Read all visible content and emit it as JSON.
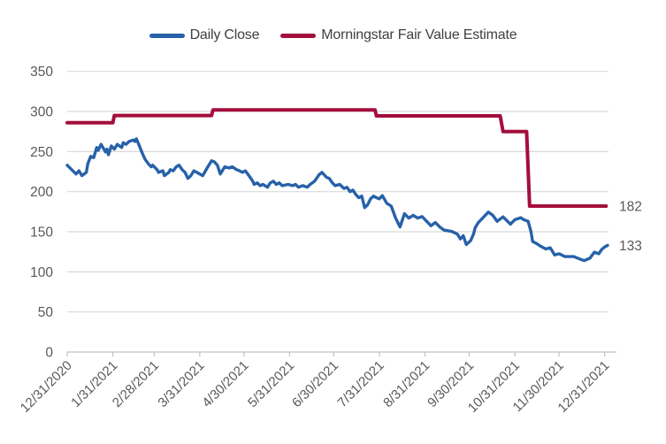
{
  "chart_data": {
    "type": "line",
    "title": "",
    "legend_position": "top-center",
    "grid": "horizontal",
    "x_axis": {
      "tick_labels": [
        "12/31/2020",
        "1/31/2021",
        "2/28/2021",
        "3/31/2021",
        "4/30/2021",
        "5/31/2021",
        "6/30/2021",
        "7/31/2021",
        "8/31/2021",
        "9/30/2021",
        "10/31/2021",
        "11/30/2021",
        "12/31/2021"
      ],
      "tick_days": [
        0,
        31,
        59,
        90,
        120,
        151,
        181,
        212,
        243,
        273,
        304,
        334,
        365
      ],
      "domain_days": [
        0,
        367
      ]
    },
    "y_axis": {
      "tick_values": [
        0,
        50,
        100,
        150,
        200,
        250,
        300,
        350
      ],
      "min": 0,
      "max": 350
    },
    "series": [
      {
        "name": "Daily Close",
        "type": "line",
        "color": "#2761A9",
        "end_label": "133",
        "points": [
          [
            0,
            233
          ],
          [
            3,
            227.5
          ],
          [
            6,
            222
          ],
          [
            8,
            226
          ],
          [
            10,
            220
          ],
          [
            13,
            224
          ],
          [
            14,
            235
          ],
          [
            16,
            244
          ],
          [
            18,
            242.5
          ],
          [
            20,
            255
          ],
          [
            21,
            251.5
          ],
          [
            23,
            259
          ],
          [
            26,
            249.5
          ],
          [
            27,
            253
          ],
          [
            28,
            246
          ],
          [
            30,
            257
          ],
          [
            32,
            253
          ],
          [
            34,
            259
          ],
          [
            37,
            255
          ],
          [
            38,
            261
          ],
          [
            40,
            259
          ],
          [
            42,
            262.5
          ],
          [
            45,
            264.5
          ],
          [
            46,
            262.5
          ],
          [
            47,
            266
          ],
          [
            49,
            257
          ],
          [
            51,
            248
          ],
          [
            53,
            240
          ],
          [
            55,
            235
          ],
          [
            57,
            231
          ],
          [
            58,
            233
          ],
          [
            61,
            227.5
          ],
          [
            62,
            224
          ],
          [
            65,
            226
          ],
          [
            66,
            220
          ],
          [
            69,
            224
          ],
          [
            70,
            227.5
          ],
          [
            72,
            226
          ],
          [
            74,
            231
          ],
          [
            76,
            233
          ],
          [
            78,
            227.5
          ],
          [
            80,
            224
          ],
          [
            82,
            216.5
          ],
          [
            84,
            220
          ],
          [
            86,
            226
          ],
          [
            88,
            224
          ],
          [
            90,
            222
          ],
          [
            92,
            220
          ],
          [
            95,
            229.5
          ],
          [
            98,
            238.5
          ],
          [
            100,
            237
          ],
          [
            102,
            233
          ],
          [
            104,
            222
          ],
          [
            107,
            231
          ],
          [
            110,
            229.5
          ],
          [
            112,
            231
          ],
          [
            115,
            227.5
          ],
          [
            117,
            226
          ],
          [
            119,
            224
          ],
          [
            121,
            226
          ],
          [
            124,
            218.5
          ],
          [
            126,
            213
          ],
          [
            127,
            209
          ],
          [
            129,
            211
          ],
          [
            131,
            207.5
          ],
          [
            133,
            209
          ],
          [
            136,
            205.5
          ],
          [
            138,
            211
          ],
          [
            140,
            213
          ],
          [
            142,
            209
          ],
          [
            144,
            211
          ],
          [
            146,
            207.5
          ],
          [
            150,
            209
          ],
          [
            153,
            207.5
          ],
          [
            155,
            209
          ],
          [
            157,
            205.5
          ],
          [
            160,
            207.5
          ],
          [
            163,
            205.5
          ],
          [
            165,
            209
          ],
          [
            168,
            213
          ],
          [
            171,
            221
          ],
          [
            173,
            224
          ],
          [
            176,
            218
          ],
          [
            178,
            216.5
          ],
          [
            180,
            211
          ],
          [
            182,
            207.5
          ],
          [
            185,
            209
          ],
          [
            188,
            204
          ],
          [
            190,
            205.5
          ],
          [
            192,
            200
          ],
          [
            194,
            202
          ],
          [
            196,
            196.5
          ],
          [
            198,
            192.5
          ],
          [
            200,
            194.5
          ],
          [
            202,
            180
          ],
          [
            204,
            183.5
          ],
          [
            206,
            191
          ],
          [
            208,
            194.5
          ],
          [
            210,
            192.5
          ],
          [
            212,
            191
          ],
          [
            214,
            195
          ],
          [
            217,
            185.5
          ],
          [
            220,
            182
          ],
          [
            223,
            167
          ],
          [
            226,
            156
          ],
          [
            229,
            172.5
          ],
          [
            232,
            167
          ],
          [
            235,
            170.5
          ],
          [
            238,
            167
          ],
          [
            241,
            169
          ],
          [
            247,
            157.5
          ],
          [
            250,
            161.5
          ],
          [
            253,
            156
          ],
          [
            256,
            152
          ],
          [
            261,
            150.5
          ],
          [
            265,
            147
          ],
          [
            267,
            141
          ],
          [
            269,
            145
          ],
          [
            271,
            134
          ],
          [
            274,
            139
          ],
          [
            276,
            147.5
          ],
          [
            277,
            155
          ],
          [
            279,
            161
          ],
          [
            286,
            174.5
          ],
          [
            289,
            170.5
          ],
          [
            292,
            163
          ],
          [
            296,
            168.5
          ],
          [
            301,
            159.5
          ],
          [
            304,
            165
          ],
          [
            308,
            167.5
          ],
          [
            310,
            165
          ],
          [
            313,
            163
          ],
          [
            315,
            150
          ],
          [
            316,
            138
          ],
          [
            319,
            135
          ],
          [
            321,
            132.5
          ],
          [
            325,
            128.5
          ],
          [
            328,
            130
          ],
          [
            331,
            121
          ],
          [
            334,
            122.5
          ],
          [
            338,
            119
          ],
          [
            344,
            119
          ],
          [
            348,
            116
          ],
          [
            351,
            114
          ],
          [
            355,
            117
          ],
          [
            358,
            124.5
          ],
          [
            361,
            122.5
          ],
          [
            363,
            128
          ],
          [
            365,
            131
          ],
          [
            367,
            133
          ]
        ]
      },
      {
        "name": "Morningstar Fair Value Estimate",
        "type": "step-line",
        "color": "#A40E3C",
        "end_label": "182",
        "points": [
          [
            0,
            286
          ],
          [
            31,
            286
          ],
          [
            32,
            295
          ],
          [
            98,
            295
          ],
          [
            99,
            302
          ],
          [
            209,
            302
          ],
          [
            210,
            294.5
          ],
          [
            294,
            294.5
          ],
          [
            296,
            275
          ],
          [
            312,
            275
          ],
          [
            314,
            182
          ],
          [
            366,
            182
          ]
        ]
      }
    ]
  },
  "colors": {
    "background": "#FFFFFF",
    "grid_line": "#D9D9D9",
    "axis_line": "#C0C0C0",
    "tick_label": "#595959",
    "end_label": "#595959",
    "legend_text": "#404040"
  }
}
